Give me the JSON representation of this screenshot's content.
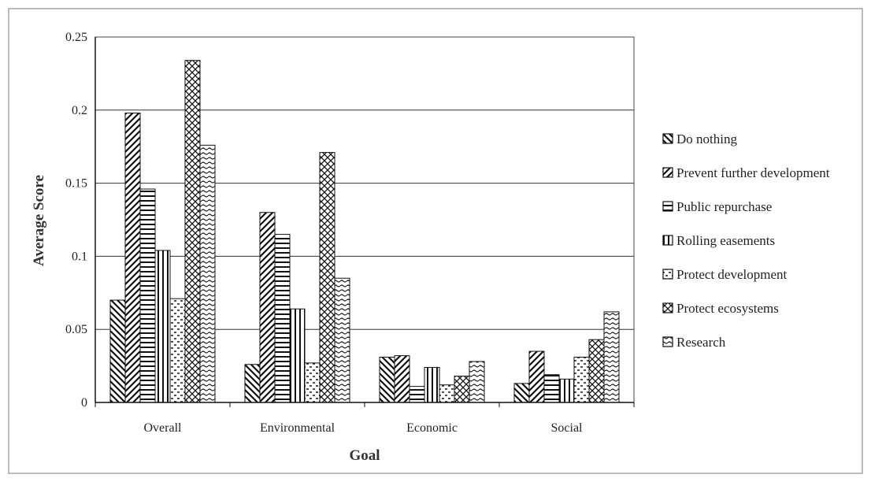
{
  "chart_data": {
    "type": "bar",
    "title": "",
    "xlabel": "Goal",
    "ylabel": "Average Score",
    "ylim": [
      0,
      0.25
    ],
    "yticks": [
      "0",
      "0.05",
      "0.1",
      "0.15",
      "0.2",
      "0.25"
    ],
    "ytick_values": [
      0,
      0.05,
      0.1,
      0.15,
      0.2,
      0.25
    ],
    "categories": [
      "Overall",
      "Environmental",
      "Economic",
      "Social"
    ],
    "grid": true,
    "legend_position": "right",
    "series": [
      {
        "name": "Do nothing",
        "pattern": "diag-back",
        "values": [
          0.07,
          0.026,
          0.031,
          0.013
        ]
      },
      {
        "name": "Prevent further development",
        "pattern": "diag-fwd",
        "values": [
          0.198,
          0.13,
          0.032,
          0.035
        ]
      },
      {
        "name": "Public repurchase",
        "pattern": "horizontal",
        "values": [
          0.146,
          0.115,
          0.011,
          0.019
        ]
      },
      {
        "name": "Rolling easements",
        "pattern": "vertical",
        "values": [
          0.104,
          0.064,
          0.024,
          0.016
        ]
      },
      {
        "name": "Protect development",
        "pattern": "dashes",
        "values": [
          0.071,
          0.027,
          0.012,
          0.031
        ]
      },
      {
        "name": "Protect ecosystems",
        "pattern": "crosshatch",
        "values": [
          0.234,
          0.171,
          0.018,
          0.043
        ]
      },
      {
        "name": "Research",
        "pattern": "wavy",
        "values": [
          0.176,
          0.085,
          0.028,
          0.062
        ]
      }
    ]
  }
}
